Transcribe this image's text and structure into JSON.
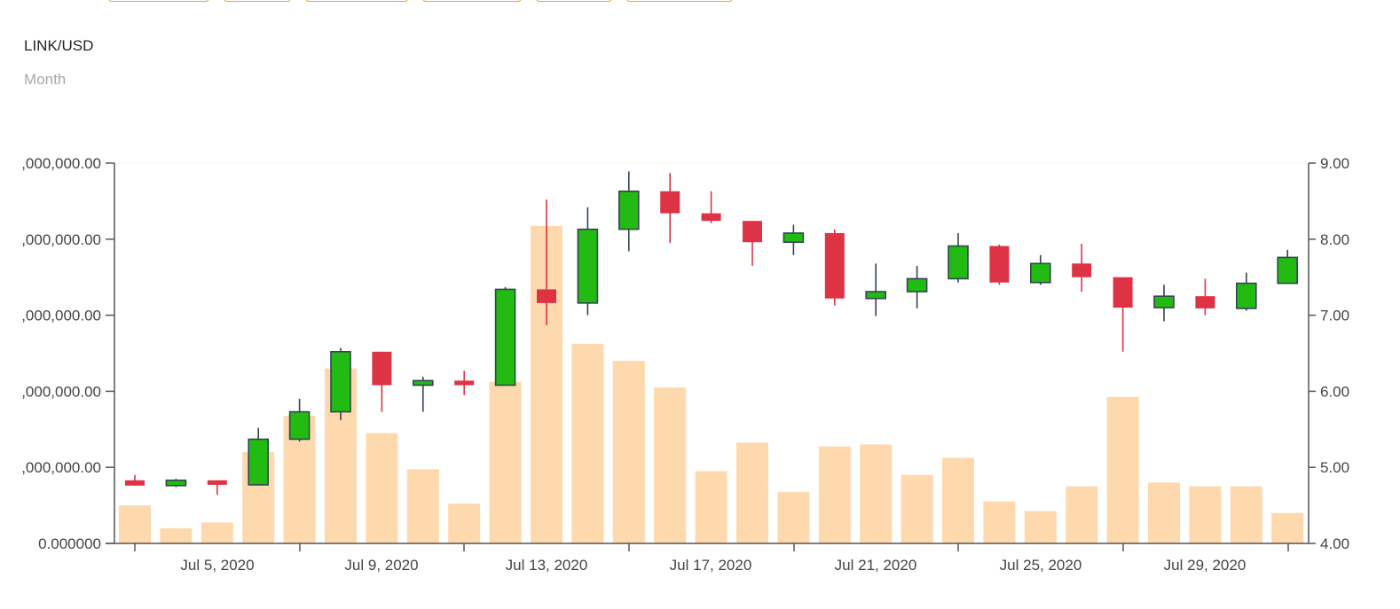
{
  "header": {
    "pair": "LINK/USD",
    "period": "Month",
    "tab_count": 6
  },
  "colors": {
    "up": "#22bb11",
    "down": "#dd3344",
    "wick": "#334455",
    "volume": "#fdd9ad",
    "tab_border": "#f0a030",
    "axis": "#555555"
  },
  "chart_data": {
    "type": "candlestick",
    "title": "LINK/USD",
    "subtitle": "Month",
    "x_ticks": [
      "Jul 5, 2020",
      "Jul 9, 2020",
      "Jul 13, 2020",
      "Jul 17, 2020",
      "Jul 21, 2020",
      "Jul 25, 2020",
      "Jul 29, 2020"
    ],
    "price_axis": {
      "side": "right",
      "ylim": [
        4.0,
        9.0
      ],
      "ticks": [
        "4.00",
        "5.00",
        "6.00",
        "7.00",
        "8.00",
        "9.00"
      ]
    },
    "volume_axis": {
      "side": "left",
      "ticks": [
        "0.000000",
        ",000,000.00",
        ",000,000.00",
        ",000,000.00",
        ",000,000.00",
        ",000,000.00"
      ]
    },
    "volume_scale": "fraction of left axis range",
    "candles": [
      {
        "date": "2020-07-03",
        "open": 4.83,
        "high": 4.9,
        "low": 4.76,
        "close": 4.76
      },
      {
        "date": "2020-07-04",
        "open": 4.76,
        "high": 4.85,
        "low": 4.74,
        "close": 4.83
      },
      {
        "date": "2020-07-05",
        "open": 4.83,
        "high": 4.83,
        "low": 4.64,
        "close": 4.77
      },
      {
        "date": "2020-07-06",
        "open": 4.77,
        "high": 5.52,
        "low": 4.77,
        "close": 5.37
      },
      {
        "date": "2020-07-07",
        "open": 5.37,
        "high": 5.9,
        "low": 5.34,
        "close": 5.73
      },
      {
        "date": "2020-07-08",
        "open": 5.73,
        "high": 6.57,
        "low": 5.62,
        "close": 6.52
      },
      {
        "date": "2020-07-09",
        "open": 6.52,
        "high": 6.52,
        "low": 5.73,
        "close": 6.08
      },
      {
        "date": "2020-07-10",
        "open": 6.08,
        "high": 6.19,
        "low": 5.73,
        "close": 6.14
      },
      {
        "date": "2020-07-11",
        "open": 6.14,
        "high": 6.27,
        "low": 5.95,
        "close": 6.08
      },
      {
        "date": "2020-07-12",
        "open": 6.08,
        "high": 7.37,
        "low": 6.08,
        "close": 7.34
      },
      {
        "date": "2020-07-13",
        "open": 7.34,
        "high": 8.52,
        "low": 6.87,
        "close": 7.16
      },
      {
        "date": "2020-07-14",
        "open": 7.16,
        "high": 8.42,
        "low": 7.0,
        "close": 8.13
      },
      {
        "date": "2020-07-15",
        "open": 8.13,
        "high": 8.89,
        "low": 7.84,
        "close": 8.63
      },
      {
        "date": "2020-07-16",
        "open": 8.63,
        "high": 8.87,
        "low": 7.95,
        "close": 8.34
      },
      {
        "date": "2020-07-17",
        "open": 8.34,
        "high": 8.63,
        "low": 8.21,
        "close": 8.24
      },
      {
        "date": "2020-07-18",
        "open": 8.24,
        "high": 8.24,
        "low": 7.65,
        "close": 7.96
      },
      {
        "date": "2020-07-19",
        "open": 7.96,
        "high": 8.19,
        "low": 7.79,
        "close": 8.08
      },
      {
        "date": "2020-07-20",
        "open": 8.08,
        "high": 8.13,
        "low": 7.13,
        "close": 7.22
      },
      {
        "date": "2020-07-21",
        "open": 7.22,
        "high": 7.68,
        "low": 6.99,
        "close": 7.31
      },
      {
        "date": "2020-07-22",
        "open": 7.31,
        "high": 7.65,
        "low": 7.09,
        "close": 7.48
      },
      {
        "date": "2020-07-23",
        "open": 7.48,
        "high": 8.08,
        "low": 7.43,
        "close": 7.91
      },
      {
        "date": "2020-07-24",
        "open": 7.91,
        "high": 7.93,
        "low": 7.4,
        "close": 7.43
      },
      {
        "date": "2020-07-25",
        "open": 7.43,
        "high": 7.79,
        "low": 7.4,
        "close": 7.68
      },
      {
        "date": "2020-07-26",
        "open": 7.68,
        "high": 7.94,
        "low": 7.31,
        "close": 7.5
      },
      {
        "date": "2020-07-27",
        "open": 7.5,
        "high": 7.5,
        "low": 6.52,
        "close": 7.1
      },
      {
        "date": "2020-07-28",
        "open": 7.1,
        "high": 7.4,
        "low": 6.92,
        "close": 7.25
      },
      {
        "date": "2020-07-29",
        "open": 7.25,
        "high": 7.48,
        "low": 7.0,
        "close": 7.09
      },
      {
        "date": "2020-07-30",
        "open": 7.09,
        "high": 7.56,
        "low": 7.06,
        "close": 7.42
      },
      {
        "date": "2020-07-31",
        "open": 7.42,
        "high": 7.86,
        "low": 7.42,
        "close": 7.76
      }
    ],
    "volumes": [
      0.1,
      0.04,
      0.055,
      0.24,
      0.335,
      0.46,
      0.29,
      0.195,
      0.105,
      0.425,
      0.835,
      0.525,
      0.48,
      0.41,
      0.19,
      0.265,
      0.135,
      0.255,
      0.26,
      0.18,
      0.225,
      0.11,
      0.085,
      0.15,
      0.385,
      0.16,
      0.15,
      0.15,
      0.08
    ]
  }
}
